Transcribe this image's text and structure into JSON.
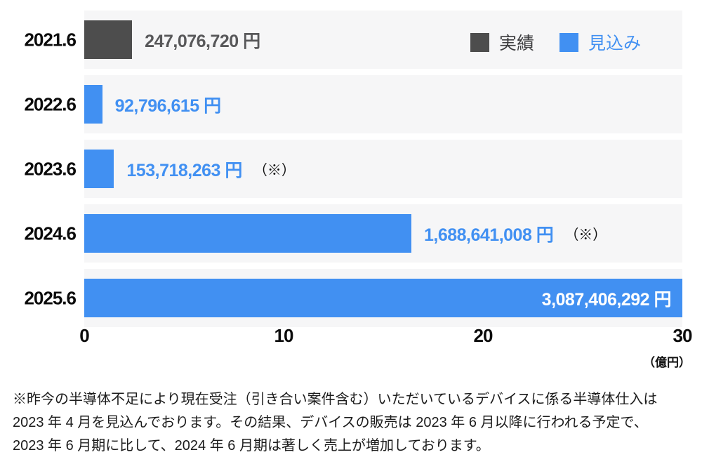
{
  "colors": {
    "bar_actual": "#4D4D4D",
    "bar_forecast": "#4190F2",
    "row_band_bg": "#F6F6F7",
    "actual_value_text": "#58585A",
    "inside_value_text": "#FFFFFF",
    "axis_text": "#0B0B0B"
  },
  "chart_data": {
    "type": "bar",
    "orientation": "horizontal",
    "title": "",
    "xlabel": "（億円）",
    "unit_label": "（億円）",
    "x_ticks": [
      0,
      10,
      20,
      30
    ],
    "xlim": [
      0,
      30
    ],
    "grid": false,
    "legend_position": "top-right",
    "legend": [
      {
        "label": "実績",
        "color": "#4D4D4D"
      },
      {
        "label": "見込み",
        "color": "#4190F2"
      }
    ],
    "rows": [
      {
        "category": "2021.6",
        "value_yen": 247076720,
        "value_oku": 2.47,
        "label": "247,076,720 円",
        "series": "実績",
        "note": "",
        "label_inside": false
      },
      {
        "category": "2022.6",
        "value_yen": 92796615,
        "value_oku": 0.93,
        "label": "92,796,615 円",
        "series": "見込み",
        "note": "",
        "label_inside": false
      },
      {
        "category": "2023.6",
        "value_yen": 153718263,
        "value_oku": 1.54,
        "label": "153,718,263 円",
        "series": "見込み",
        "note": "（※）",
        "label_inside": false
      },
      {
        "category": "2024.6",
        "value_yen": 1688641008,
        "value_oku": 16.89,
        "label": "1,688,641,008 円",
        "series": "見込み",
        "note": "（※）",
        "label_inside": false
      },
      {
        "category": "2025.6",
        "value_yen": 3087406292,
        "value_oku": 30.87,
        "label": "3,087,406,292 円",
        "series": "見込み",
        "note": "",
        "label_inside": true
      }
    ]
  },
  "footnote": {
    "text": "※昨今の半導体不足により現在受注（引き合い案件含む）いただいているデバイスに係る半導体仕入は\n2023 年 4 月を見込んでおります。その結果、デバイスの販売は 2023 年 6 月以降に行われる予定で、\n2023 年 6 月期に比して、2024 年 6 月期は著しく売上が増加しております。"
  }
}
